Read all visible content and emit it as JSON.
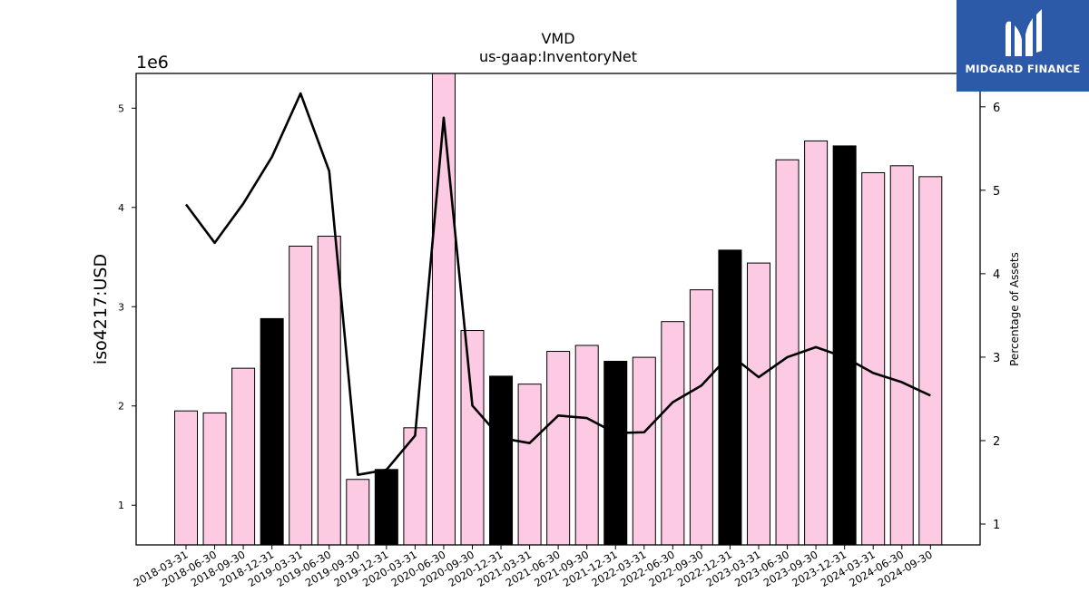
{
  "chart_data": {
    "type": "bar",
    "title": "VMD",
    "subtitle": "us-gaap:InventoryNet",
    "ylabel": "iso4217:USD",
    "y_offset_label": "1e6",
    "y2label": "Percentage of Assets",
    "ylim": [
      0.6,
      5.35
    ],
    "y2lim": [
      0.75,
      6.4
    ],
    "yticks": [
      "1",
      "2",
      "3",
      "4",
      "5"
    ],
    "y2ticks": [
      "1",
      "2",
      "3",
      "4",
      "5",
      "6"
    ],
    "categories": [
      "2018-03-31",
      "2018-06-30",
      "2018-09-30",
      "2018-12-31",
      "2019-03-31",
      "2019-06-30",
      "2019-09-30",
      "2019-12-31",
      "2020-03-31",
      "2020-06-30",
      "2020-09-30",
      "2020-12-31",
      "2021-03-31",
      "2021-06-30",
      "2021-09-30",
      "2021-12-31",
      "2022-03-31",
      "2022-06-30",
      "2022-09-30",
      "2022-12-31",
      "2023-03-31",
      "2023-06-30",
      "2023-09-30",
      "2023-12-31",
      "2024-03-31",
      "2024-06-30",
      "2024-09-30"
    ],
    "series": [
      {
        "type": "bar",
        "values": [
          1.95,
          1.93,
          2.38,
          2.88,
          3.61,
          3.71,
          1.26,
          1.36,
          1.78,
          5.36,
          2.76,
          2.3,
          2.22,
          2.55,
          2.61,
          2.45,
          2.49,
          2.85,
          3.17,
          3.57,
          3.44,
          4.48,
          4.67,
          4.62,
          4.35,
          4.42,
          4.31
        ],
        "highlight": [
          false,
          false,
          false,
          true,
          false,
          false,
          false,
          true,
          false,
          false,
          false,
          true,
          false,
          false,
          false,
          true,
          false,
          false,
          false,
          true,
          false,
          false,
          false,
          true,
          false,
          false,
          false
        ],
        "color": "#fccbe3",
        "highlight_color": "#000000"
      },
      {
        "type": "line",
        "axis": "right",
        "values": [
          4.83,
          4.37,
          4.84,
          5.4,
          6.16,
          5.23,
          1.59,
          1.65,
          2.06,
          5.87,
          2.42,
          2.03,
          1.97,
          2.3,
          2.27,
          2.09,
          2.1,
          2.46,
          2.66,
          3.03,
          2.76,
          3.0,
          3.12,
          3.0,
          2.81,
          2.7,
          2.54
        ],
        "color": "#000000"
      }
    ]
  },
  "logo": {
    "text": "MIDGARD FINANCE"
  }
}
